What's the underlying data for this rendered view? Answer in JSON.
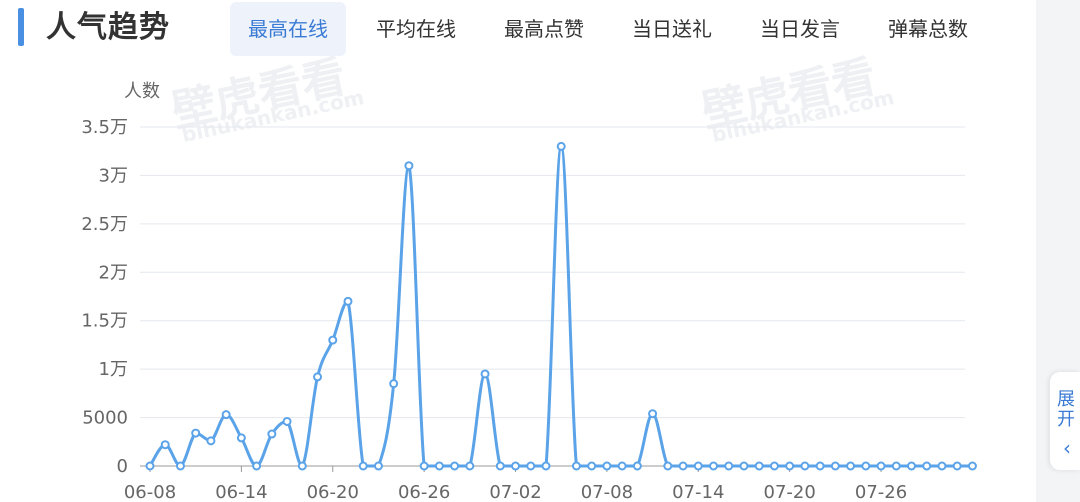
{
  "header": {
    "title": "人气趋势",
    "tabs": [
      "最高在线",
      "平均在线",
      "最高点赞",
      "当日送礼",
      "当日发言",
      "弹幕总数"
    ],
    "active_tab": 0
  },
  "watermark": {
    "brand": "壁虎看看",
    "domain": "bihukankan.com"
  },
  "side_button": {
    "label": "展开",
    "arrow": "‹"
  },
  "colors": {
    "line": "#5ba3e8",
    "accent": "#3a7bd5",
    "grid": "#e4e7ed"
  },
  "chart_data": {
    "type": "line",
    "ylabel": "人数",
    "ylim": [
      0,
      35000
    ],
    "yticks": [
      {
        "value": 0,
        "label": "0"
      },
      {
        "value": 5000,
        "label": "5000"
      },
      {
        "value": 10000,
        "label": "1万"
      },
      {
        "value": 15000,
        "label": "1.5万"
      },
      {
        "value": 20000,
        "label": "2万"
      },
      {
        "value": 25000,
        "label": "2.5万"
      },
      {
        "value": 30000,
        "label": "3万"
      },
      {
        "value": 35000,
        "label": "3.5万"
      }
    ],
    "x_start": "06-08",
    "xticks": [
      "06-08",
      "06-14",
      "06-20",
      "06-26",
      "07-02",
      "07-08",
      "07-14",
      "07-20",
      "07-26"
    ],
    "grid": true,
    "legend": "none",
    "values": [
      0,
      2200,
      0,
      3400,
      2600,
      5300,
      2900,
      0,
      3300,
      4600,
      0,
      9200,
      13000,
      17000,
      0,
      0,
      8500,
      31000,
      0,
      0,
      0,
      0,
      9500,
      0,
      0,
      0,
      0,
      33000,
      0,
      0,
      0,
      0,
      0,
      5400,
      0,
      0,
      0,
      0,
      0,
      0,
      0,
      0,
      0,
      0,
      0,
      0,
      0,
      0,
      0,
      0,
      0,
      0,
      0,
      0,
      0
    ]
  }
}
